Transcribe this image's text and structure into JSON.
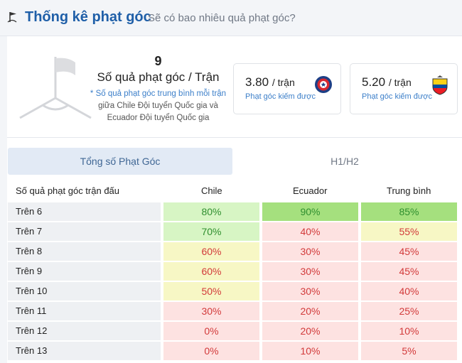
{
  "header": {
    "title": "Thống kê phạt góc",
    "subtitle": "Sẽ có bao nhiêu quả phạt góc?",
    "icon": "corner-flag-icon"
  },
  "summary": {
    "value": "9",
    "label": "Số quả phạt góc / Trận",
    "note_prefix": "* Số quả phạt góc trung bình mỗi trận",
    "note_line2": "giữa Chile Đội tuyển Quốc gia và",
    "note_line3": "Ecuador Đội tuyển Quốc gia"
  },
  "teams": [
    {
      "rate": "3.80",
      "unit": "/ trận",
      "label": "Phạt góc kiếm được",
      "icon": "chile-crest-icon"
    },
    {
      "rate": "5.20",
      "unit": "/ trận",
      "label": "Phạt góc kiếm được",
      "icon": "ecuador-crest-icon"
    }
  ],
  "tabs": {
    "total": "Tổng số Phạt Góc",
    "half": "H1/H2"
  },
  "table": {
    "headers": [
      "Số quả phạt góc trận đấu",
      "Chile",
      "Ecuador",
      "Trung bình"
    ],
    "rows": [
      {
        "label": "Trên 6",
        "chile": "80%",
        "ecuador": "90%",
        "avg": "85%"
      },
      {
        "label": "Trên 7",
        "chile": "70%",
        "ecuador": "40%",
        "avg": "55%"
      },
      {
        "label": "Trên 8",
        "chile": "60%",
        "ecuador": "30%",
        "avg": "45%"
      },
      {
        "label": "Trên 9",
        "chile": "60%",
        "ecuador": "30%",
        "avg": "45%"
      },
      {
        "label": "Trên 10",
        "chile": "50%",
        "ecuador": "30%",
        "avg": "40%"
      },
      {
        "label": "Trên 11",
        "chile": "30%",
        "ecuador": "20%",
        "avg": "25%"
      },
      {
        "label": "Trên 12",
        "chile": "0%",
        "ecuador": "20%",
        "avg": "10%"
      },
      {
        "label": "Trên 13",
        "chile": "0%",
        "ecuador": "10%",
        "avg": "5%"
      }
    ]
  },
  "colors": {
    "title": "#1f5fa8",
    "accent": "#3c7fc9",
    "high_fill": "#a5e07e",
    "good_fill": "#d7f5c4",
    "mid_fill": "#f7f7c5",
    "low_fill": "#fde2e1",
    "high_text": "#2f8f2f",
    "low_text": "#d23a3a"
  }
}
